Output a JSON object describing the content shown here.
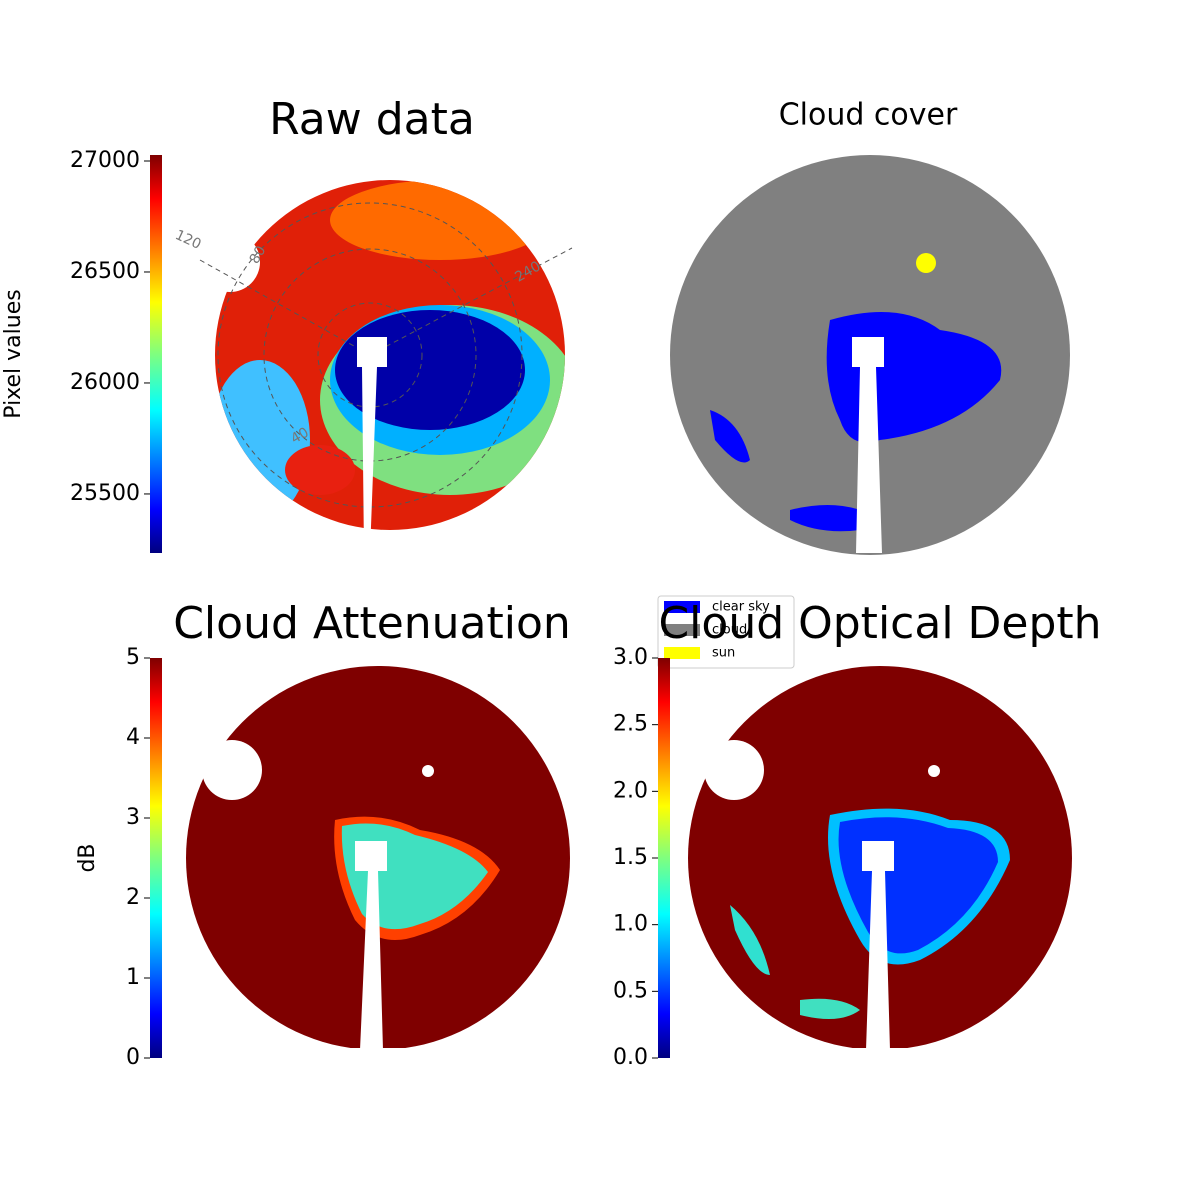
{
  "chart_data": [
    {
      "type": "image",
      "title": "Raw data",
      "ylabel": "Pixel values",
      "colormap": "jet",
      "ylim": [
        25234,
        27027
      ],
      "yticks": [
        25500,
        26000,
        26500,
        27000
      ],
      "annotations": [
        "120",
        "80",
        "40",
        "240"
      ]
    },
    {
      "type": "image",
      "title": "Cloud cover",
      "series": [
        {
          "name": "clear sky",
          "color": "#0000ff"
        },
        {
          "name": "cloud",
          "color": "#808080"
        },
        {
          "name": "sun",
          "color": "#ffff00"
        }
      ]
    },
    {
      "type": "image",
      "title": "Cloud Attenuation",
      "ylabel": "dB",
      "colormap": "jet",
      "ylim": [
        0,
        5
      ],
      "yticks": [
        0,
        1,
        2,
        3,
        4,
        5
      ]
    },
    {
      "type": "image",
      "title": "Cloud Optical Depth",
      "colormap": "jet",
      "ylim": [
        0,
        3
      ],
      "yticks": [
        {
          "value": 0,
          "label": "0.0"
        },
        0.5,
        {
          "value": 1,
          "label": "1.0"
        },
        1.5,
        {
          "value": 2,
          "label": "2.0"
        },
        2.5,
        {
          "value": 3,
          "label": "3.0"
        }
      ]
    }
  ]
}
